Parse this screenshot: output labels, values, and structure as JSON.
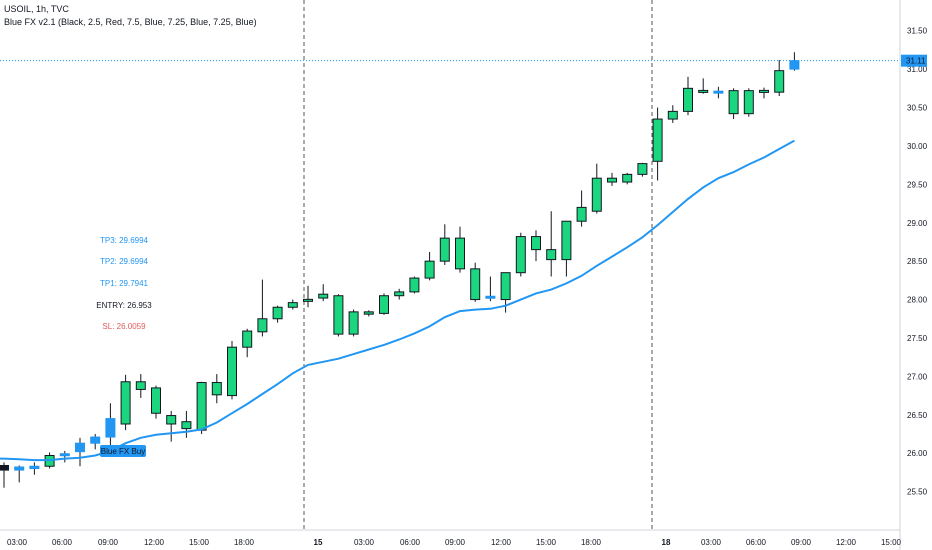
{
  "header": {
    "symbol_line": "USOIL, 1h, TVC",
    "indicator_line": "Blue FX v2.1 (Black, 2.5, Red, 7.5, Blue, 7.25, Blue, 7.25, Blue)"
  },
  "colors": {
    "up_fill": "#1bd67e",
    "down_fill": "#1bd67e",
    "outline": "#131722",
    "signal_blue": "#2196f3",
    "ma_line": "#2196f3",
    "tp_text": "#2196f3",
    "entry_text": "#131722",
    "sl_text": "#e05b5b",
    "grid_divider": "#555555",
    "price_tag_bg": "#2196f3"
  },
  "levels": {
    "tp3": "TP3: 29.6994",
    "tp2": "TP2: 29.6994",
    "tp1": "TP1: 29.7941",
    "entry": "ENTRY: 26.953",
    "sl": "SL: 26.0059"
  },
  "signal_label": "Blue FX Buy",
  "last_price_label": "31.11",
  "chart_data": {
    "type": "candlestick",
    "title": "USOIL, 1h, TVC",
    "ylim": [
      25.0,
      31.9
    ],
    "yticks": [
      "25.50",
      "26.00",
      "26.50",
      "27.00",
      "27.50",
      "28.00",
      "28.50",
      "29.00",
      "29.50",
      "30.00",
      "30.50",
      "31.00",
      "31.50"
    ],
    "xticks": [
      "03:00",
      "06:00",
      "09:00",
      "12:00",
      "15:00",
      "18:00",
      "15",
      "03:00",
      "06:00",
      "09:00",
      "12:00",
      "15:00",
      "18:00",
      "18",
      "03:00",
      "06:00",
      "09:00",
      "12:00",
      "15:00"
    ],
    "last_price": 31.11,
    "candles": [
      {
        "o": 25.84,
        "h": 25.88,
        "l": 25.55,
        "c": 25.78,
        "color": "black"
      },
      {
        "o": 25.78,
        "h": 25.84,
        "l": 25.62,
        "c": 25.82,
        "color": "blue"
      },
      {
        "o": 25.8,
        "h": 25.88,
        "l": 25.72,
        "c": 25.83,
        "color": "blue"
      },
      {
        "o": 25.83,
        "h": 26.01,
        "l": 25.8,
        "c": 25.97,
        "color": "green"
      },
      {
        "o": 25.97,
        "h": 26.03,
        "l": 25.88,
        "c": 25.99,
        "color": "blue"
      },
      {
        "o": 26.02,
        "h": 26.2,
        "l": 25.83,
        "c": 26.13,
        "color": "blue"
      },
      {
        "o": 26.13,
        "h": 26.25,
        "l": 26.05,
        "c": 26.21,
        "color": "blue"
      },
      {
        "o": 26.21,
        "h": 26.65,
        "l": 26.1,
        "c": 26.45,
        "color": "blue"
      },
      {
        "o": 26.38,
        "h": 27.02,
        "l": 26.3,
        "c": 26.93,
        "color": "green"
      },
      {
        "o": 26.93,
        "h": 27.03,
        "l": 26.72,
        "c": 26.83,
        "color": "green"
      },
      {
        "o": 26.85,
        "h": 26.88,
        "l": 26.45,
        "c": 26.52,
        "color": "green"
      },
      {
        "o": 26.49,
        "h": 26.55,
        "l": 26.15,
        "c": 26.38,
        "color": "green"
      },
      {
        "o": 26.41,
        "h": 26.55,
        "l": 26.2,
        "c": 26.32,
        "color": "green"
      },
      {
        "o": 26.3,
        "h": 26.93,
        "l": 26.25,
        "c": 26.92,
        "color": "green"
      },
      {
        "o": 26.92,
        "h": 27.03,
        "l": 26.65,
        "c": 26.76,
        "color": "green"
      },
      {
        "o": 26.75,
        "h": 27.46,
        "l": 26.7,
        "c": 27.38,
        "color": "green"
      },
      {
        "o": 27.38,
        "h": 27.62,
        "l": 27.25,
        "c": 27.59,
        "color": "green"
      },
      {
        "o": 27.58,
        "h": 28.26,
        "l": 27.52,
        "c": 27.75,
        "color": "green"
      },
      {
        "o": 27.75,
        "h": 27.92,
        "l": 27.7,
        "c": 27.9,
        "color": "green"
      },
      {
        "o": 27.9,
        "h": 28.0,
        "l": 27.87,
        "c": 27.96,
        "color": "green"
      },
      {
        "o": 27.98,
        "h": 28.18,
        "l": 27.9,
        "c": 28.0,
        "color": "green"
      },
      {
        "o": 28.02,
        "h": 28.2,
        "l": 27.98,
        "c": 28.07,
        "color": "green"
      },
      {
        "o": 28.05,
        "h": 28.07,
        "l": 27.52,
        "c": 27.55,
        "color": "green"
      },
      {
        "o": 27.55,
        "h": 27.87,
        "l": 27.52,
        "c": 27.84,
        "color": "green"
      },
      {
        "o": 27.84,
        "h": 27.86,
        "l": 27.78,
        "c": 27.81,
        "color": "green"
      },
      {
        "o": 27.82,
        "h": 28.08,
        "l": 27.8,
        "c": 28.05,
        "color": "green"
      },
      {
        "o": 28.05,
        "h": 28.14,
        "l": 28.0,
        "c": 28.1,
        "color": "green"
      },
      {
        "o": 28.1,
        "h": 28.3,
        "l": 28.08,
        "c": 28.28,
        "color": "green"
      },
      {
        "o": 28.28,
        "h": 28.62,
        "l": 28.25,
        "c": 28.5,
        "color": "green"
      },
      {
        "o": 28.5,
        "h": 28.98,
        "l": 28.45,
        "c": 28.8,
        "color": "green"
      },
      {
        "o": 28.8,
        "h": 28.95,
        "l": 28.35,
        "c": 28.4,
        "color": "green"
      },
      {
        "o": 28.4,
        "h": 28.48,
        "l": 27.97,
        "c": 28.0,
        "color": "green"
      },
      {
        "o": 28.03,
        "h": 28.3,
        "l": 27.98,
        "c": 28.03,
        "color": "blue"
      },
      {
        "o": 28.0,
        "h": 28.35,
        "l": 27.83,
        "c": 28.35,
        "color": "green"
      },
      {
        "o": 28.35,
        "h": 28.87,
        "l": 28.3,
        "c": 28.82,
        "color": "green"
      },
      {
        "o": 28.82,
        "h": 28.9,
        "l": 28.5,
        "c": 28.65,
        "color": "green"
      },
      {
        "o": 28.52,
        "h": 29.15,
        "l": 28.3,
        "c": 28.65,
        "color": "green"
      },
      {
        "o": 28.52,
        "h": 29.02,
        "l": 28.3,
        "c": 29.02,
        "color": "green"
      },
      {
        "o": 29.02,
        "h": 29.42,
        "l": 28.95,
        "c": 29.2,
        "color": "green"
      },
      {
        "o": 29.15,
        "h": 29.77,
        "l": 29.12,
        "c": 29.58,
        "color": "green"
      },
      {
        "o": 29.53,
        "h": 29.65,
        "l": 29.48,
        "c": 29.58,
        "color": "green"
      },
      {
        "o": 29.53,
        "h": 29.65,
        "l": 29.5,
        "c": 29.63,
        "color": "green"
      },
      {
        "o": 29.63,
        "h": 29.78,
        "l": 29.6,
        "c": 29.77,
        "color": "green"
      },
      {
        "o": 29.8,
        "h": 30.5,
        "l": 29.55,
        "c": 30.35,
        "color": "green"
      },
      {
        "o": 30.35,
        "h": 30.53,
        "l": 30.3,
        "c": 30.45,
        "color": "green"
      },
      {
        "o": 30.45,
        "h": 30.9,
        "l": 30.4,
        "c": 30.75,
        "color": "green"
      },
      {
        "o": 30.72,
        "h": 30.88,
        "l": 30.68,
        "c": 30.7,
        "color": "green"
      },
      {
        "o": 30.7,
        "h": 30.77,
        "l": 30.62,
        "c": 30.7,
        "color": "blue"
      },
      {
        "o": 30.72,
        "h": 30.75,
        "l": 30.35,
        "c": 30.42,
        "color": "green"
      },
      {
        "o": 30.42,
        "h": 30.75,
        "l": 30.38,
        "c": 30.72,
        "color": "green"
      },
      {
        "o": 30.72,
        "h": 30.76,
        "l": 30.62,
        "c": 30.7,
        "color": "green"
      },
      {
        "o": 30.7,
        "h": 31.12,
        "l": 30.65,
        "c": 30.98,
        "color": "green"
      },
      {
        "o": 31.0,
        "h": 31.22,
        "l": 30.98,
        "c": 31.11,
        "color": "blue"
      }
    ],
    "ma": [
      25.93,
      25.92,
      25.91,
      25.91,
      25.93,
      25.94,
      25.97,
      26.03,
      26.13,
      26.2,
      26.24,
      26.26,
      26.28,
      26.31,
      26.4,
      26.52,
      26.64,
      26.77,
      26.9,
      27.04,
      27.15,
      27.19,
      27.23,
      27.29,
      27.35,
      27.41,
      27.48,
      27.56,
      27.65,
      27.77,
      27.85,
      27.87,
      27.88,
      27.92,
      28.0,
      28.08,
      28.13,
      28.21,
      28.31,
      28.44,
      28.56,
      28.68,
      28.81,
      28.97,
      29.14,
      29.31,
      29.46,
      29.58,
      29.66,
      29.76,
      29.85,
      29.96,
      30.07
    ]
  }
}
